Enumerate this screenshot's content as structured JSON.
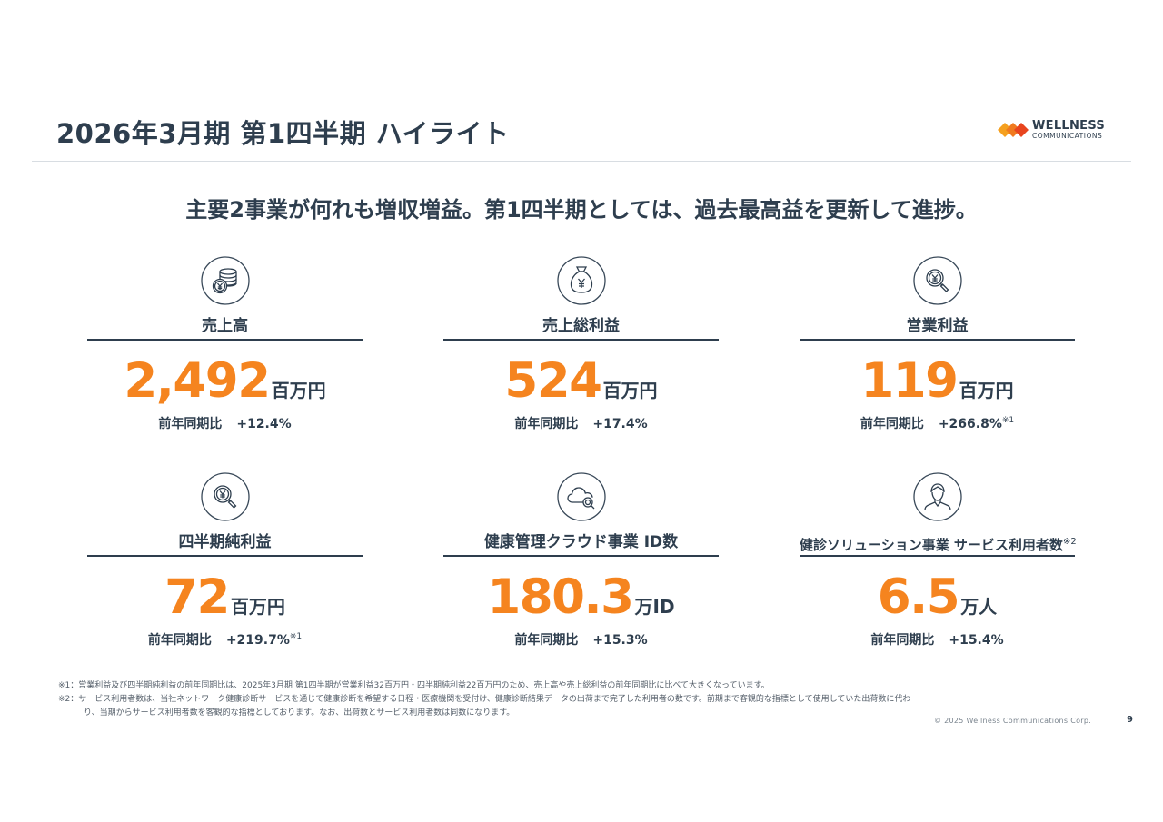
{
  "title": "2026年3月期 第1四半期 ハイライト",
  "logo": {
    "line1": "WELLNESS",
    "line2": "COMMUNICATIONS",
    "colors": [
      "#f5a01f",
      "#e8451e"
    ]
  },
  "headline": "主要2事業が何れも増収増益。第1四半期としては、過去最高益を更新して進捗。",
  "accent_color": "#f5841f",
  "text_color": "#2e3e4e",
  "cards": [
    {
      "icon": "coin-stack-yen-icon",
      "label": "売上高",
      "value": "2,492",
      "unit": "百万円",
      "yoy_label": "前年同期比",
      "yoy_value": "+12.4%",
      "note": ""
    },
    {
      "icon": "money-bag-yen-icon",
      "label": "売上総利益",
      "value": "524",
      "unit": "百万円",
      "yoy_label": "前年同期比",
      "yoy_value": "+17.4%",
      "note": ""
    },
    {
      "icon": "magnifier-yen-icon",
      "label": "営業利益",
      "value": "119",
      "unit": "百万円",
      "yoy_label": "前年同期比",
      "yoy_value": "+266.8%",
      "note": "※1"
    },
    {
      "icon": "magnifier-yen-icon",
      "label": "四半期純利益",
      "value": "72",
      "unit": "百万円",
      "yoy_label": "前年同期比",
      "yoy_value": "+219.7%",
      "note": "※1"
    },
    {
      "icon": "cloud-search-icon",
      "label": "健康管理クラウド事業 ID数",
      "value": "180.3",
      "unit": "万ID",
      "yoy_label": "前年同期比",
      "yoy_value": "+15.3%",
      "note": ""
    },
    {
      "icon": "person-icon",
      "label": "健診ソリューション事業 サービス利用者数",
      "label_note": "※2",
      "value": "6.5",
      "unit": "万人",
      "yoy_label": "前年同期比",
      "yoy_value": "+15.4%",
      "note": ""
    }
  ],
  "footnotes": {
    "n1": "※1：営業利益及び四半期純利益の前年同期比は、2025年3月期 第1四半期が営業利益32百万円・四半期純利益22百万円のため、売上高や売上総利益の前年同期比に比べて大きくなっています。",
    "n2a": "※2：サービス利用者数は、当社ネットワーク健康診断サービスを通じて健康診断を希望する日程・医療機関を受付け、健康診断結果データの出荷まで完了した利用者の数です。前期まで客観的な指標として使用していた出荷数に代わ",
    "n2b": "り、当期からサービス利用者数を客観的な指標としております。なお、出荷数とサービス利用者数は同数になります。"
  },
  "copyright": "© 2025 Wellness Communications Corp.",
  "page_number": "9"
}
